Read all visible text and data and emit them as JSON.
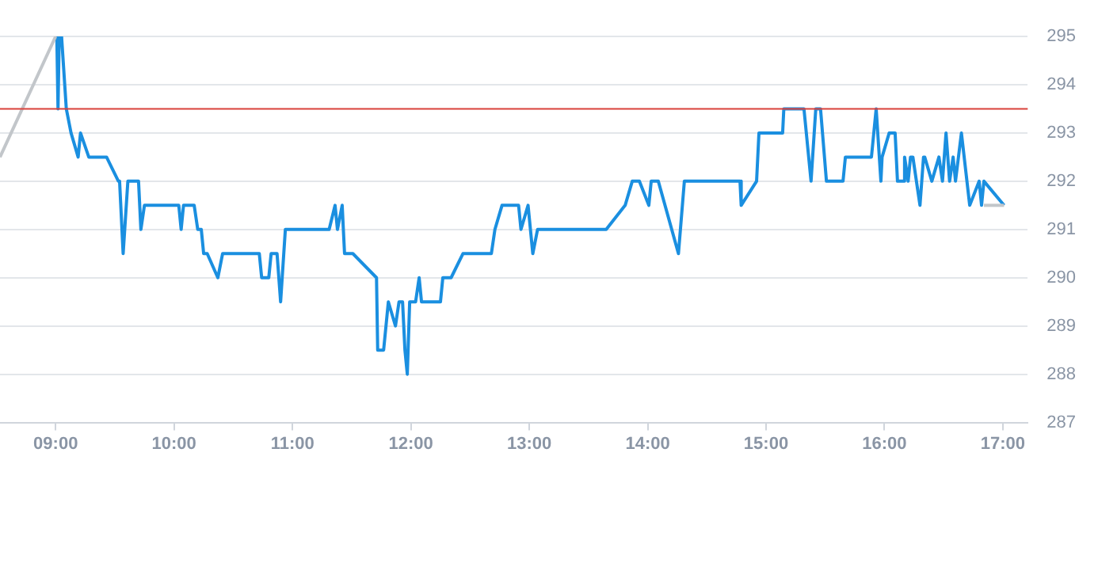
{
  "chart_data": {
    "type": "line",
    "xlim": [
      8.53,
      17.21
    ],
    "ylim": [
      287,
      295
    ],
    "xticks": [
      {
        "value": 9,
        "label": "09:00"
      },
      {
        "value": 10,
        "label": "10:00"
      },
      {
        "value": 11,
        "label": "11:00"
      },
      {
        "value": 12,
        "label": "12:00"
      },
      {
        "value": 13,
        "label": "13:00"
      },
      {
        "value": 14,
        "label": "14:00"
      },
      {
        "value": 15,
        "label": "15:00"
      },
      {
        "value": 16,
        "label": "16:00"
      },
      {
        "value": 17,
        "label": "17:00"
      }
    ],
    "yticks": [
      287,
      288,
      289,
      290,
      291,
      292,
      293,
      294,
      295
    ],
    "grid": "y",
    "legend": false,
    "marker": "none",
    "line_style": "solid",
    "ref_lines": [
      {
        "axis": "y",
        "value": 293.5,
        "color": "#d9413a"
      }
    ],
    "series": [
      {
        "color": "#c2c6ca",
        "x": [
          8.53,
          9.0
        ],
        "values": [
          292.5,
          295
        ]
      },
      {
        "color": "#c2c6ca",
        "x": [
          16.84,
          17.01
        ],
        "values": [
          291.5,
          291.5
        ]
      },
      {
        "color": "#1a8fe0",
        "x": [
          9.01,
          9.02,
          9.03,
          9.05,
          9.09,
          9.13,
          9.19,
          9.21,
          9.28,
          9.43,
          9.53,
          9.54,
          9.57,
          9.61,
          9.7,
          9.72,
          9.75,
          10.04,
          10.06,
          10.08,
          10.17,
          10.2,
          10.23,
          10.25,
          10.28,
          10.37,
          10.41,
          10.72,
          10.74,
          10.8,
          10.82,
          10.87,
          10.9,
          10.94,
          11.31,
          11.36,
          11.38,
          11.42,
          11.44,
          11.51,
          11.71,
          11.72,
          11.77,
          11.81,
          11.87,
          11.9,
          11.93,
          11.95,
          11.97,
          11.99,
          12.04,
          12.07,
          12.09,
          12.25,
          12.27,
          12.34,
          12.44,
          12.68,
          12.71,
          12.77,
          12.91,
          12.93,
          12.99,
          13.03,
          13.07,
          13.65,
          13.81,
          13.87,
          13.93,
          14.01,
          14.03,
          14.09,
          14.26,
          14.31,
          14.78,
          14.79,
          14.92,
          14.94,
          15.14,
          15.15,
          15.32,
          15.38,
          15.42,
          15.46,
          15.51,
          15.65,
          15.67,
          15.89,
          15.93,
          15.97,
          15.98,
          16.04,
          16.09,
          16.11,
          16.16,
          16.17,
          16.2,
          16.22,
          16.24,
          16.3,
          16.33,
          16.34,
          16.4,
          16.46,
          16.49,
          16.52,
          16.55,
          16.58,
          16.6,
          16.65,
          16.72,
          16.8,
          16.82,
          16.84,
          17.01
        ],
        "values": [
          295,
          293.5,
          295,
          295,
          293.5,
          293,
          292.5,
          293,
          292.5,
          292.5,
          292,
          292,
          290.5,
          292,
          292,
          291,
          291.5,
          291.5,
          291,
          291.5,
          291.5,
          291,
          291,
          290.5,
          290.5,
          290,
          290.5,
          290.5,
          290,
          290,
          290.5,
          290.5,
          289.5,
          291,
          291,
          291.5,
          291,
          291.5,
          290.5,
          290.5,
          290,
          288.5,
          288.5,
          289.5,
          289,
          289.5,
          289.5,
          288.5,
          288,
          289.5,
          289.5,
          290,
          289.5,
          289.5,
          290,
          290,
          290.5,
          290.5,
          291,
          291.5,
          291.5,
          291,
          291.5,
          290.5,
          291,
          291,
          291.5,
          292,
          292,
          291.5,
          292,
          292,
          290.5,
          292,
          292,
          291.5,
          292,
          293,
          293,
          293.5,
          293.5,
          292,
          293.5,
          293.5,
          292,
          292,
          292.5,
          292.5,
          293.5,
          292,
          292.5,
          293,
          293,
          292,
          292,
          292.5,
          292,
          292.5,
          292.5,
          291.5,
          292.5,
          292.5,
          292,
          292.5,
          292,
          293,
          292,
          292.5,
          292,
          293,
          291.5,
          292,
          291.5,
          292,
          291.5
        ]
      }
    ]
  }
}
